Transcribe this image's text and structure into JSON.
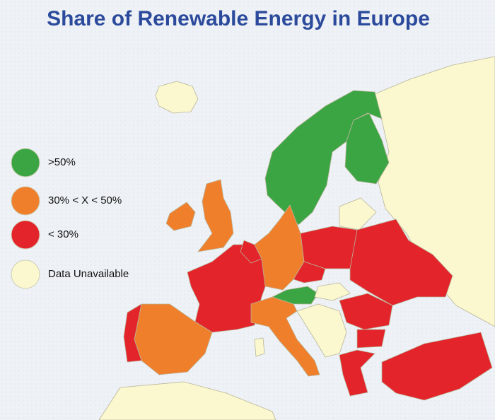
{
  "title": "Share of Renewable Energy in Europe",
  "legend": [
    {
      "label": ">50%",
      "color": "#3ba543"
    },
    {
      "label": "30% < X < 50%",
      "color": "#f07f2c"
    },
    {
      "label": "< 30%",
      "color": "#e3242b"
    },
    {
      "label": "Data Unavailable",
      "color": "#fbf8cf"
    }
  ]
}
